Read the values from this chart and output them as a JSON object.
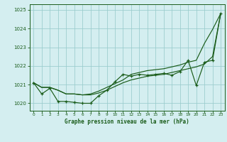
{
  "title": "Graphe pression niveau de la mer (hPa)",
  "bg_color": "#d4eef0",
  "grid_color": "#99cccc",
  "line_color": "#1a5c1a",
  "xlim": [
    -0.5,
    23.5
  ],
  "ylim": [
    1019.6,
    1025.3
  ],
  "yticks": [
    1020,
    1021,
    1022,
    1023,
    1024,
    1025
  ],
  "xticks": [
    0,
    1,
    2,
    3,
    4,
    5,
    6,
    7,
    8,
    9,
    10,
    11,
    12,
    13,
    14,
    15,
    16,
    17,
    18,
    19,
    20,
    21,
    22,
    23
  ],
  "line_smooth1": [
    1021.1,
    1020.85,
    1020.85,
    1020.7,
    1020.5,
    1020.5,
    1020.45,
    1020.45,
    1020.55,
    1020.7,
    1020.9,
    1021.1,
    1021.25,
    1021.35,
    1021.45,
    1021.5,
    1021.55,
    1021.65,
    1021.75,
    1021.85,
    1021.95,
    1022.1,
    1022.5,
    1024.8
  ],
  "line_smooth2": [
    1021.1,
    1020.85,
    1020.85,
    1020.7,
    1020.5,
    1020.5,
    1020.45,
    1020.5,
    1020.65,
    1020.85,
    1021.05,
    1021.25,
    1021.55,
    1021.65,
    1021.75,
    1021.8,
    1021.85,
    1021.95,
    1022.05,
    1022.2,
    1022.3,
    1023.2,
    1023.95,
    1024.8
  ],
  "line_jagged": [
    1021.1,
    1020.5,
    1020.8,
    1020.1,
    1020.1,
    1020.05,
    1020.0,
    1020.0,
    1020.4,
    1020.7,
    1021.15,
    1021.55,
    1021.45,
    1021.55,
    1021.5,
    1021.55,
    1021.6,
    1021.5,
    1021.7,
    1022.3,
    1020.95,
    1022.2,
    1022.3,
    1024.8
  ]
}
